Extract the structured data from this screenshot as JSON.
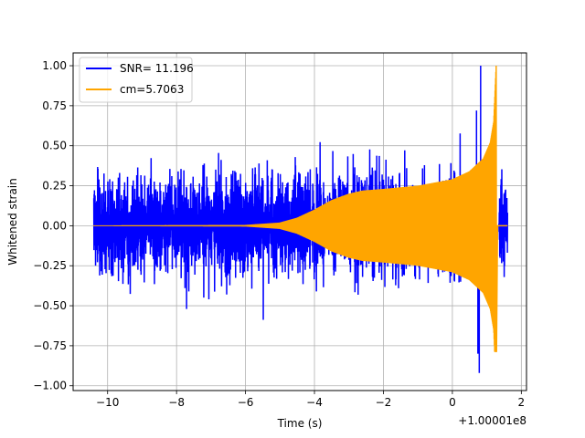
{
  "chart_data": {
    "type": "line",
    "title": "",
    "xlabel": "Time (s)",
    "ylabel": "Whitened strain",
    "x_offset_label": "+1.00001e8",
    "xlim": [
      -11.0,
      2.15
    ],
    "ylim": [
      -1.03,
      1.08
    ],
    "x_ticks": [
      -10,
      -8,
      -6,
      -4,
      -2,
      0,
      2
    ],
    "x_tick_labels": [
      "−10",
      "−8",
      "−6",
      "−4",
      "−2",
      "0",
      "2"
    ],
    "y_ticks": [
      1.0,
      0.75,
      0.5,
      0.25,
      0.0,
      -0.25,
      -0.5,
      -0.75,
      -1.0
    ],
    "y_tick_labels": [
      "1.00",
      "0.75",
      "0.50",
      "0.25",
      "0.00",
      "−0.25",
      "−0.50",
      "−0.75",
      "−1.00"
    ],
    "grid": true,
    "legend_position": "top-left",
    "series": [
      {
        "name": "SNR= 11.196",
        "color": "#0000ff",
        "description_kind": "whitened noise data",
        "x_start": -10.4,
        "x_end": 1.6,
        "x_gap": [
          1.27,
          1.35
        ],
        "typical_envelope": 0.3,
        "max": 1.0,
        "min": -0.92
      },
      {
        "name": "cm=5.7063",
        "color": "#ffa500",
        "description_kind": "template chirp",
        "x_start": -10.4,
        "x_end": 1.6,
        "envelope_points": [
          [
            -10.4,
            0.002
          ],
          [
            -6.0,
            0.005
          ],
          [
            -5.0,
            0.02
          ],
          [
            -4.5,
            0.05
          ],
          [
            -4.0,
            0.1
          ],
          [
            -3.5,
            0.16
          ],
          [
            -3.0,
            0.2
          ],
          [
            -2.6,
            0.22
          ],
          [
            -2.0,
            0.23
          ],
          [
            -1.0,
            0.25
          ],
          [
            0.0,
            0.29
          ],
          [
            0.5,
            0.34
          ],
          [
            0.9,
            0.42
          ],
          [
            1.1,
            0.52
          ],
          [
            1.2,
            0.65
          ],
          [
            1.27,
            1.0
          ]
        ],
        "max": 1.0,
        "min": -0.79,
        "merger_time": 1.27
      }
    ]
  }
}
